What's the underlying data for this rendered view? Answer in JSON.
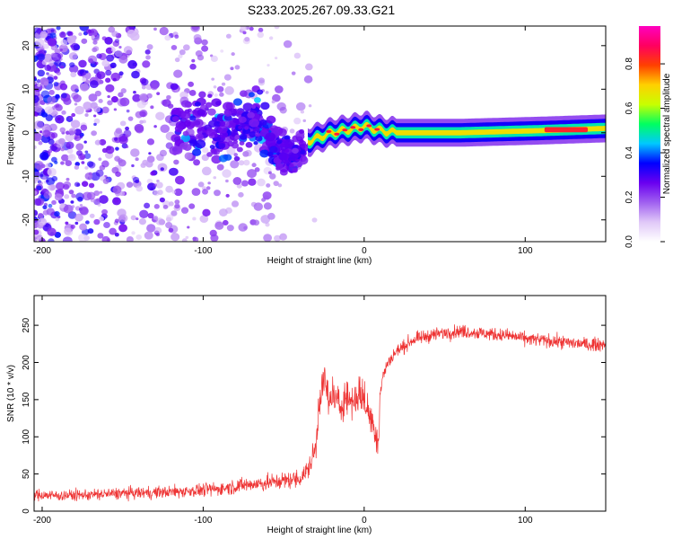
{
  "chart_data": [
    {
      "type": "heatmap",
      "title": "S233.2025.267.09.33.G21",
      "xlabel": "Height of straight line (km)",
      "ylabel": "Frequency (Hz)",
      "xlim": [
        -205,
        150
      ],
      "ylim": [
        -25,
        24.5
      ],
      "x_ticks": [
        -200,
        -100,
        0,
        100
      ],
      "x_tick_labels": [
        "-200",
        "-100",
        "0",
        "100"
      ],
      "y_ticks": [
        -20,
        -10,
        0,
        10,
        20
      ],
      "y_tick_labels": [
        "-20",
        "-10",
        "0",
        "10",
        "20"
      ],
      "colorbar": {
        "label": "Normalized spectral amplitude",
        "range": [
          0,
          0.97
        ],
        "ticks": [
          0,
          0.2,
          0.4,
          0.6,
          0.8
        ],
        "tick_labels": [
          "0.0",
          "0.2",
          "0.4",
          "0.6",
          "0.8"
        ],
        "colors": [
          "#ffffff",
          "#e0c8f8",
          "#a060f0",
          "#6a00f0",
          "#0000ff",
          "#00c8ff",
          "#00ff60",
          "#c8ff00",
          "#ffd000",
          "#ff4000",
          "#ff0060",
          "#ff00c0"
        ]
      },
      "features": {
        "noise_region_x": [
          -205,
          -30
        ],
        "converging_trend": [
          [
            -120,
            2
          ],
          [
            -90,
            0
          ],
          [
            -70,
            3
          ],
          [
            -55,
            -3
          ],
          [
            -45,
            -6
          ],
          [
            -38,
            -3
          ]
        ],
        "signal_track": [
          [
            -35,
            -2
          ],
          [
            -20,
            0
          ],
          [
            -5,
            1
          ],
          [
            0,
            1.5
          ],
          [
            10,
            0.5
          ],
          [
            20,
            0
          ],
          [
            60,
            0
          ],
          [
            110,
            0.5
          ],
          [
            150,
            1
          ]
        ],
        "peak_segment_x": [
          112,
          150
        ]
      }
    },
    {
      "type": "line",
      "title": "",
      "xlabel": "Height of straight line (km)",
      "ylabel": "SNR (10 * v/v)",
      "xlim": [
        -205,
        150
      ],
      "ylim": [
        0,
        290
      ],
      "x_ticks": [
        -200,
        -100,
        0,
        100
      ],
      "x_tick_labels": [
        "-200",
        "-100",
        "0",
        "100"
      ],
      "y_ticks": [
        0,
        50,
        100,
        150,
        200,
        250
      ],
      "y_tick_labels": [
        "0",
        "50",
        "100",
        "150",
        "200",
        "250"
      ],
      "color": "#ee3333",
      "series": [
        {
          "name": "SNR",
          "x": [
            -205,
            -190,
            -170,
            -150,
            -130,
            -110,
            -90,
            -75,
            -60,
            -50,
            -40,
            -35,
            -30,
            -28,
            -26,
            -24,
            -22,
            -20,
            -18,
            -15,
            -12,
            -9,
            -6,
            -3,
            0,
            3,
            5,
            7,
            8,
            9,
            10,
            12,
            15,
            20,
            25,
            30,
            40,
            50,
            60,
            70,
            80,
            90,
            100,
            110,
            120,
            130,
            140,
            150
          ],
          "y": [
            22,
            21,
            22,
            24,
            25,
            27,
            30,
            35,
            38,
            41,
            44,
            55,
            85,
            150,
            170,
            175,
            140,
            160,
            150,
            140,
            155,
            150,
            148,
            160,
            150,
            130,
            120,
            110,
            95,
            100,
            160,
            185,
            200,
            215,
            222,
            230,
            236,
            240,
            242,
            240,
            238,
            236,
            232,
            230,
            228,
            226,
            224,
            225
          ]
        }
      ]
    }
  ]
}
